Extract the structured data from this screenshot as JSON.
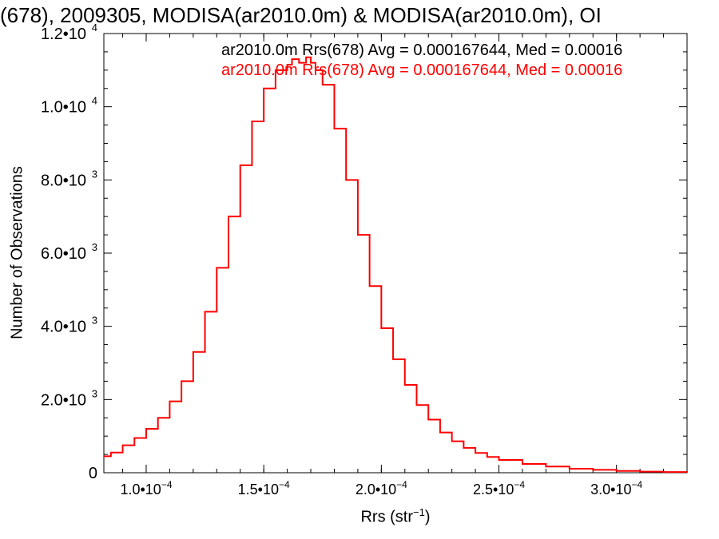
{
  "chart_data": {
    "type": "histogram",
    "title": "(678), 2009305, MODISA(ar2010.0m) & MODISA(ar2010.0m), OI",
    "xlabel_base": "Rrs (str",
    "xlabel_exp": "−1",
    "xlabel_close": ")",
    "ylabel": "Number of Observations",
    "xlim": [
      8.2e-05,
      0.00033
    ],
    "ylim": [
      0,
      12000
    ],
    "x_ticks": [
      {
        "value": 0.0001,
        "label": "1.0•10",
        "exp": "−4"
      },
      {
        "value": 0.00015,
        "label": "1.5•10",
        "exp": "−4"
      },
      {
        "value": 0.0002,
        "label": "2.0•10",
        "exp": "−4"
      },
      {
        "value": 0.00025,
        "label": "2.5•10",
        "exp": "−4"
      },
      {
        "value": 0.0003,
        "label": "3.0•10",
        "exp": "−4"
      }
    ],
    "y_ticks": [
      {
        "value": 0,
        "label": "0",
        "exp": ""
      },
      {
        "value": 2000,
        "label": "2.0•10",
        "exp": "3"
      },
      {
        "value": 4000,
        "label": "4.0•10",
        "exp": "3"
      },
      {
        "value": 6000,
        "label": "6.0•10",
        "exp": "3"
      },
      {
        "value": 8000,
        "label": "8.0•10",
        "exp": "3"
      },
      {
        "value": 10000,
        "label": "1.0•10",
        "exp": "4"
      },
      {
        "value": 12000,
        "label": "1.2•10",
        "exp": "4"
      }
    ],
    "legend": [
      {
        "text": "ar2010.0m Rrs(678) Avg = 0.000167644, Med = 0.00016",
        "color": "#000000"
      },
      {
        "text": "ar2010.0m Rrs(678) Avg = 0.000167644, Med = 0.00016",
        "color": "#ff0000"
      }
    ],
    "legend_position": "top-right",
    "series": [
      {
        "color": "#ff0000",
        "x": [
          8.2e-05,
          8.5e-05,
          9e-05,
          9.5e-05,
          0.0001,
          0.000105,
          0.00011,
          0.000115,
          0.00012,
          0.000125,
          0.00013,
          0.000135,
          0.00014,
          0.000145,
          0.00015,
          0.000155,
          0.00016,
          0.000162,
          0.000165,
          0.000168,
          0.00017,
          0.000172,
          0.000175,
          0.00018,
          0.000185,
          0.00019,
          0.000195,
          0.0002,
          0.000205,
          0.00021,
          0.000215,
          0.00022,
          0.000225,
          0.00023,
          0.000235,
          0.00024,
          0.000245,
          0.00025,
          0.00026,
          0.00027,
          0.00028,
          0.00029,
          0.0003,
          0.00031,
          0.00032,
          0.00033
        ],
        "y": [
          450,
          550,
          750,
          950,
          1200,
          1500,
          1950,
          2500,
          3300,
          4400,
          5600,
          7000,
          8400,
          9600,
          10500,
          11000,
          11150,
          11300,
          11200,
          11350,
          11200,
          11000,
          10600,
          9400,
          8000,
          6500,
          5100,
          3950,
          3100,
          2400,
          1850,
          1450,
          1100,
          860,
          680,
          540,
          430,
          350,
          240,
          170,
          110,
          80,
          50,
          30,
          20,
          10
        ]
      }
    ]
  }
}
